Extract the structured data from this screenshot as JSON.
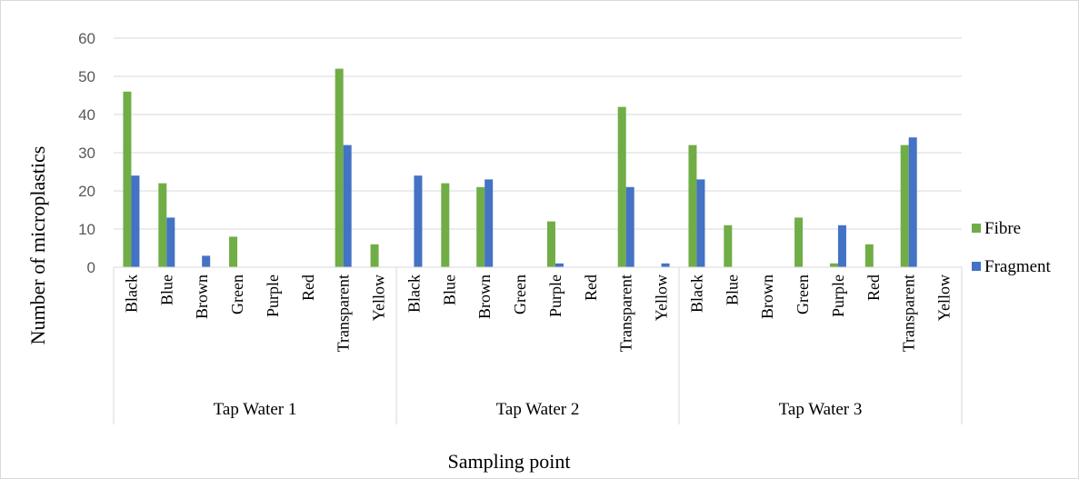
{
  "chart_data": {
    "type": "bar",
    "title": "",
    "xlabel": "Sampling point",
    "ylabel": "Number of microplastics",
    "ylim": [
      0,
      60
    ],
    "yticks": [
      "0",
      "10",
      "20",
      "30",
      "40",
      "50",
      "60"
    ],
    "grid": true,
    "legend_position": "right",
    "groups": [
      "Tap Water 1",
      "Tap Water 2",
      "Tap Water 3"
    ],
    "categories": [
      "Black",
      "Blue",
      "Brown",
      "Green",
      "Purple",
      "Red",
      "Transparent",
      "Yellow"
    ],
    "series": [
      {
        "name": "Fibre",
        "color": "#70ad47",
        "values": [
          [
            46,
            22,
            0,
            8,
            0,
            0,
            52,
            6
          ],
          [
            0,
            22,
            21,
            0,
            12,
            0,
            42,
            0
          ],
          [
            32,
            11,
            0,
            13,
            1,
            6,
            32,
            0
          ]
        ]
      },
      {
        "name": "Fragment",
        "color": "#4472c4",
        "values": [
          [
            24,
            13,
            3,
            0,
            0,
            0,
            32,
            0
          ],
          [
            24,
            0,
            23,
            0,
            1,
            0,
            21,
            1
          ],
          [
            23,
            0,
            0,
            0,
            11,
            0,
            34,
            0
          ]
        ]
      }
    ]
  }
}
